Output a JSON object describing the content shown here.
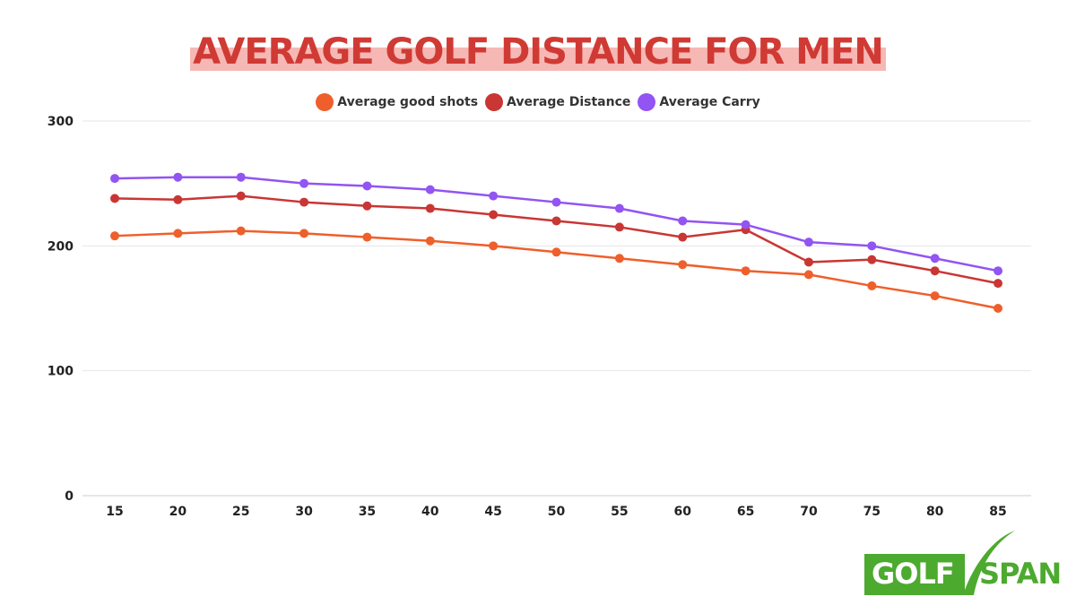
{
  "chart_data": {
    "type": "line",
    "title": "AVERAGE GOLF DISTANCE FOR MEN",
    "xlabel": "",
    "ylabel": "",
    "categories": [
      "15",
      "20",
      "25",
      "30",
      "35",
      "40",
      "45",
      "50",
      "55",
      "60",
      "65",
      "70",
      "75",
      "80",
      "85"
    ],
    "ylim": [
      0,
      300
    ],
    "yticks": [
      "0",
      "100",
      "200",
      "300"
    ],
    "grid": true,
    "legend": "top-center",
    "series": [
      {
        "name": "Average good shots",
        "color": "#ef5f2b",
        "values": [
          208,
          210,
          212,
          210,
          207,
          204,
          200,
          195,
          190,
          185,
          180,
          177,
          168,
          160,
          150
        ]
      },
      {
        "name": "Average Distance",
        "color": "#c93633",
        "values": [
          238,
          237,
          240,
          235,
          232,
          230,
          225,
          220,
          215,
          207,
          213,
          187,
          189,
          180,
          170
        ]
      },
      {
        "name": "Average Carry",
        "color": "#9254f2",
        "values": [
          254,
          255,
          255,
          250,
          248,
          245,
          240,
          235,
          230,
          220,
          217,
          203,
          200,
          190,
          180
        ]
      }
    ]
  },
  "logo": {
    "part1": "GOLF",
    "part2": "SPAN",
    "color": "#4caa2f"
  }
}
